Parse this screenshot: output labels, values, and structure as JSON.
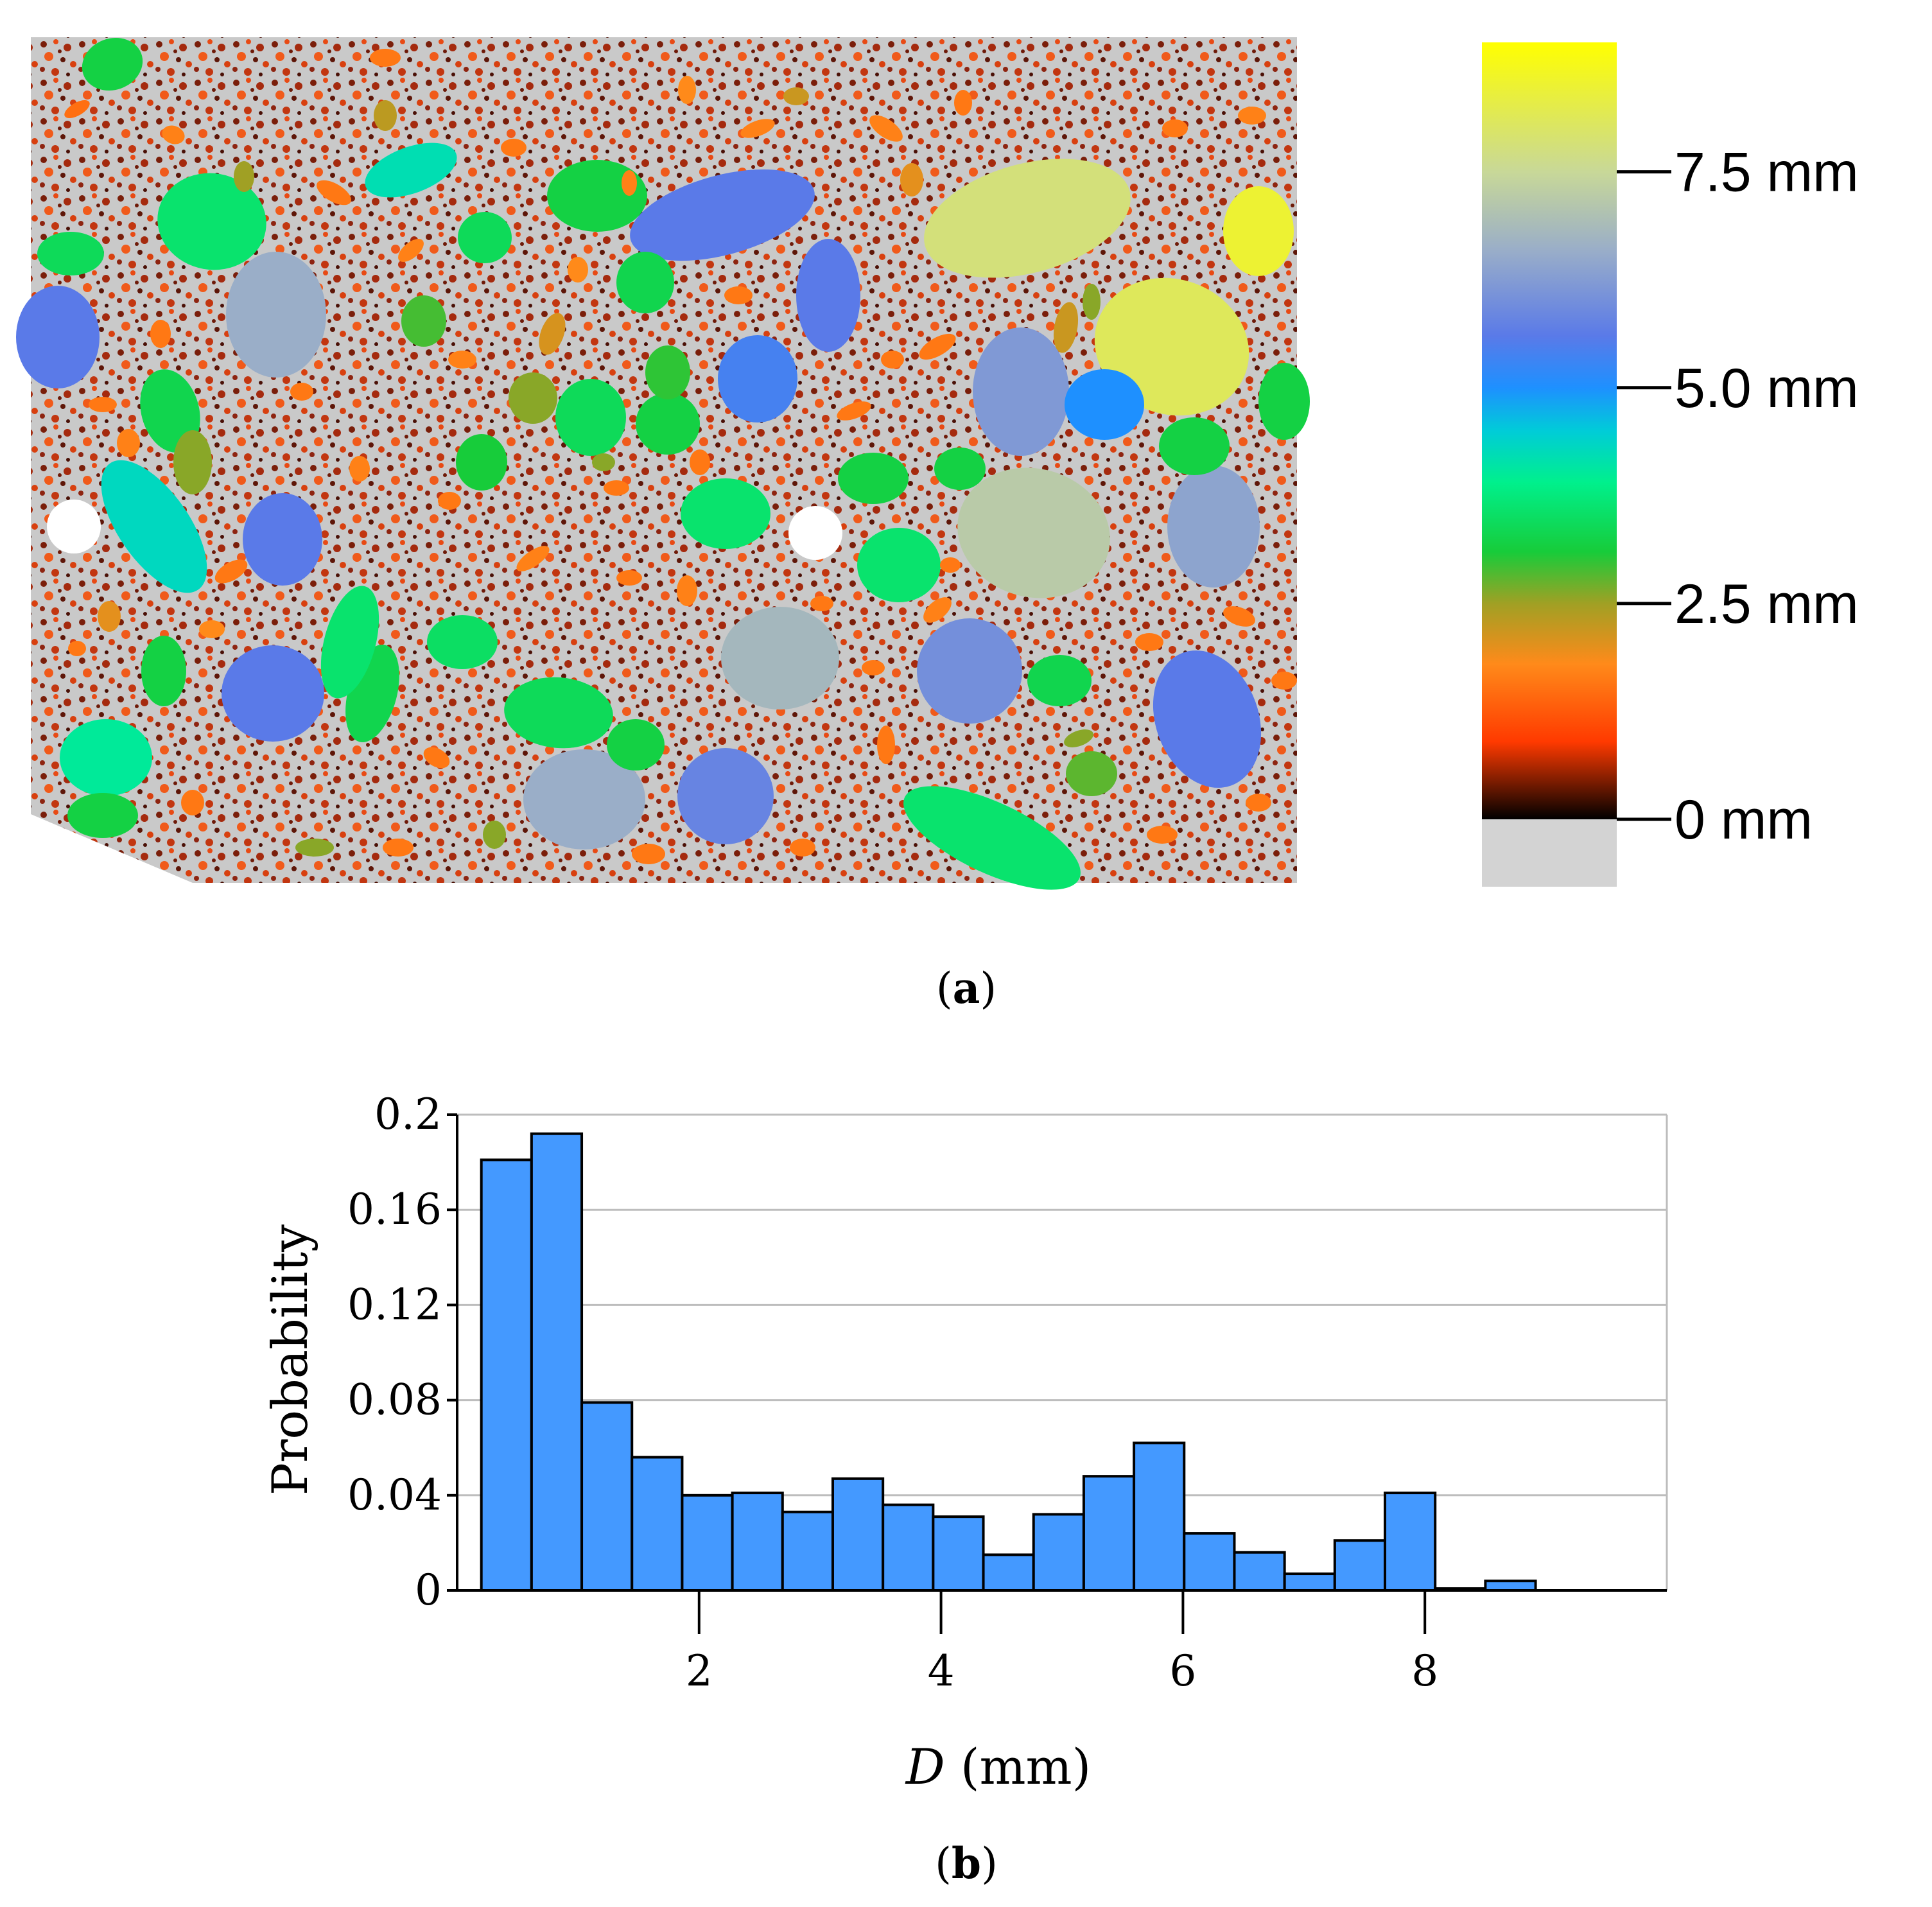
{
  "panel_a": {
    "caption_letter": "a",
    "colorbar": {
      "ticks": [
        {
          "value": 7.5,
          "label": "7.5 mm"
        },
        {
          "value": 5.0,
          "label": "5.0 mm"
        },
        {
          "value": 2.5,
          "label": "2.5 mm"
        },
        {
          "value": 0,
          "label": "0 mm"
        }
      ],
      "range": [
        0,
        9.0
      ],
      "stops": [
        {
          "value": 0,
          "color": "#000000"
        },
        {
          "value": 0.9,
          "color": "#ff3a00"
        },
        {
          "value": 1.8,
          "color": "#ff8a1a"
        },
        {
          "value": 2.5,
          "color": "#a0a024"
        },
        {
          "value": 3.1,
          "color": "#17cc3a"
        },
        {
          "value": 3.9,
          "color": "#00f08c"
        },
        {
          "value": 4.5,
          "color": "#00ccd8"
        },
        {
          "value": 5.0,
          "color": "#1e90ff"
        },
        {
          "value": 5.6,
          "color": "#5a7ae8"
        },
        {
          "value": 6.6,
          "color": "#9aaec8"
        },
        {
          "value": 7.5,
          "color": "#c8d898"
        },
        {
          "value": 9.0,
          "color": "#ffff00"
        }
      ],
      "below_zero_color": "#d3d3d3"
    }
  },
  "panel_b": {
    "caption_letter": "b",
    "bar_color": "#4499ff",
    "chart_data": {
      "type": "bar",
      "title": "",
      "xlabel_italic": "D",
      "xlabel_rest": " (mm)",
      "ylabel": "Probability",
      "xlim": [
        0,
        10
      ],
      "ylim": [
        0,
        0.2
      ],
      "bin_width": 0.415,
      "bin_start": 0.2,
      "xticks": [
        2,
        4,
        6,
        8
      ],
      "yticks": [
        0,
        0.04,
        0.08,
        0.12,
        0.16,
        0.2
      ],
      "ytick_labels": [
        "0",
        "0.04",
        "0.08",
        "0.12",
        "0.16",
        "0.2"
      ],
      "xtick_labels": [
        "2",
        "4",
        "6",
        "8"
      ],
      "grid": "horizontal",
      "values": [
        0.181,
        0.192,
        0.079,
        0.056,
        0.04,
        0.041,
        0.033,
        0.047,
        0.036,
        0.031,
        0.015,
        0.032,
        0.048,
        0.062,
        0.024,
        0.016,
        0.007,
        0.021,
        0.041,
        0.0008,
        0.004,
        0,
        0
      ]
    }
  }
}
